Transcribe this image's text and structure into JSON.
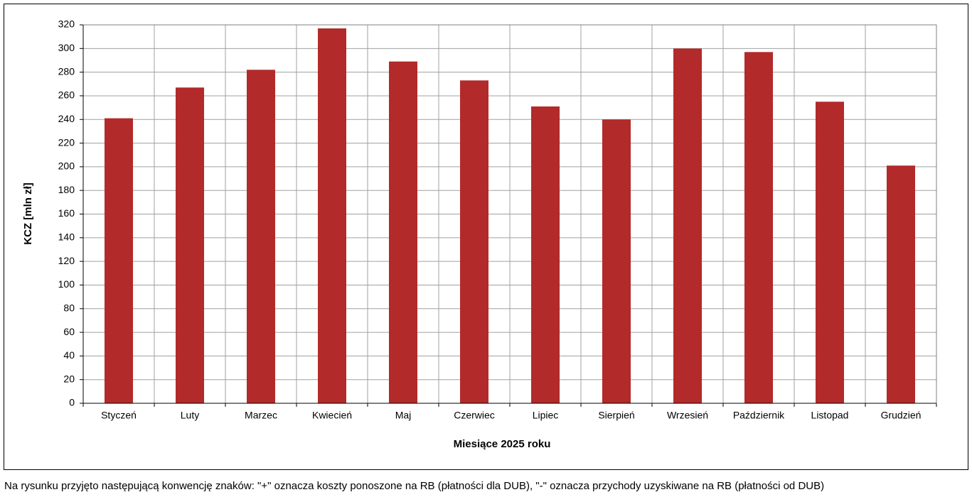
{
  "chart_data": {
    "type": "bar",
    "x_label": "Miesiące  2025 roku",
    "y_label": "KCZ [mln zł]",
    "categories": [
      "Styczeń",
      "Luty",
      "Marzec",
      "Kwiecień",
      "Maj",
      "Czerwiec",
      "Lipiec",
      "Sierpień",
      "Wrzesień",
      "Październik",
      "Listopad",
      "Grudzień"
    ],
    "values": [
      241,
      267,
      282,
      317,
      289,
      273,
      251,
      240,
      300,
      297,
      255,
      201
    ],
    "color": "#b22a2a",
    "ylim": [
      0,
      320
    ],
    "yticks": [
      0,
      20,
      40,
      60,
      80,
      100,
      120,
      140,
      160,
      180,
      200,
      220,
      240,
      260,
      280,
      300,
      320
    ],
    "grid": true
  },
  "note": "Na rysunku przyjęto następującą konwencję  znaków: \"+\" oznacza koszty ponoszone na RB (płatności dla DUB), \"-\" oznacza przychody uzyskiwane na RB (płatności od DUB)"
}
